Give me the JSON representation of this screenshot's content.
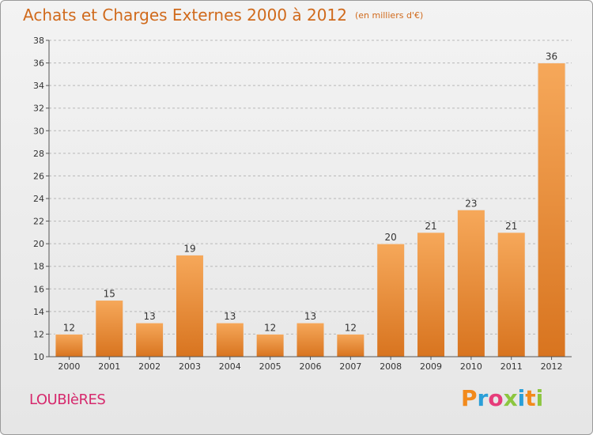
{
  "header": {
    "title": "Achats et Charges Externes 2000 à 2012",
    "unit": "(en milliers d'€)"
  },
  "footer": {
    "town": "LOUBIèRES",
    "brand": "Proxiti",
    "brand_colors": [
      "#f28a1c",
      "#2a9fd8",
      "#e63c7a",
      "#8cc63f",
      "#2a9fd8",
      "#f28a1c",
      "#8cc63f"
    ]
  },
  "colors": {
    "bar_light": "#f6a85a",
    "bar_dark": "#d8741f",
    "title": "#d06a1c",
    "town": "#d62a6d"
  },
  "chart_data": {
    "type": "bar",
    "title": "Achats et Charges Externes 2000 à 2012",
    "subtitle": "(en milliers d'€)",
    "categories": [
      "2000",
      "2001",
      "2002",
      "2003",
      "2004",
      "2005",
      "2006",
      "2007",
      "2008",
      "2009",
      "2010",
      "2011",
      "2012"
    ],
    "values": [
      12,
      15,
      13,
      19,
      13,
      12,
      13,
      12,
      20,
      21,
      23,
      21,
      36
    ],
    "ylim": [
      10,
      38
    ],
    "yticks": [
      10,
      12,
      14,
      16,
      18,
      20,
      22,
      24,
      26,
      28,
      30,
      32,
      34,
      36,
      38
    ],
    "xlabel": "",
    "ylabel": "",
    "grid": "horizontal-dashed",
    "data_labels": true
  }
}
